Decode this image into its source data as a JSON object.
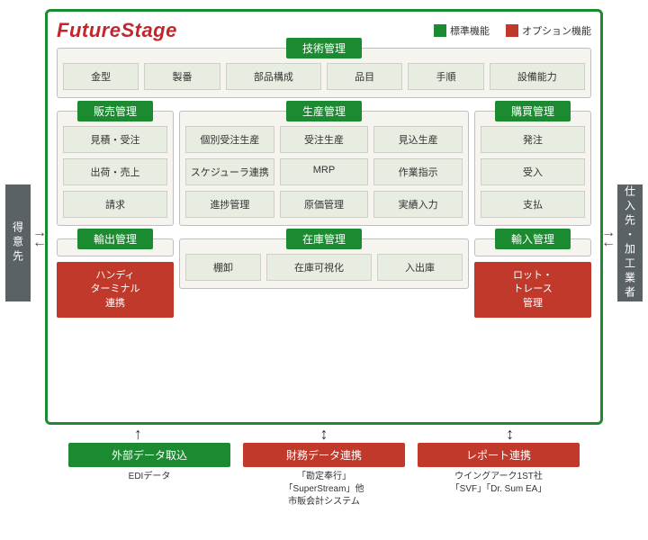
{
  "colors": {
    "green": "#1b8a31",
    "red": "#c1392b",
    "tile_bg": "#e7ede0",
    "section_bg": "#f6f4ef",
    "sidebar": "#5b6266"
  },
  "brand": "FutureStage",
  "legend": {
    "std_label": "標準機能",
    "opt_label": "オプション機能"
  },
  "sidebars": {
    "left": "得意先",
    "right": "仕入先・加工業者"
  },
  "tech": {
    "header": "技術管理",
    "items": [
      "金型",
      "製番",
      "部品構成",
      "品目",
      "手順",
      "設備能力"
    ]
  },
  "sales": {
    "header": "販売管理",
    "items": [
      "見積・受注",
      "出荷・売上",
      "請求"
    ]
  },
  "production": {
    "header": "生産管理",
    "items": [
      "個別受注生産",
      "受注生産",
      "見込生産",
      "スケジューラ連携",
      "MRP",
      "作業指示",
      "進捗管理",
      "原価管理",
      "実績入力"
    ]
  },
  "purchase": {
    "header": "購買管理",
    "items": [
      "発注",
      "受入",
      "支払"
    ]
  },
  "export": {
    "header": "輸出管理",
    "option": "ハンディ\nターミナル\n連携"
  },
  "inventory": {
    "header": "在庫管理",
    "items": [
      "棚卸",
      "在庫可視化",
      "入出庫"
    ]
  },
  "import": {
    "header": "輸入管理",
    "option": "ロット・\nトレース\n管理"
  },
  "external": [
    {
      "header": "外部データ取込",
      "header_color": "#1b8a31",
      "sub": "EDIデータ"
    },
    {
      "header": "財務データ連携",
      "header_color": "#c1392b",
      "sub": "「勘定奉行」\n「SuperStream」他\n市販会計システム"
    },
    {
      "header": "レポート連携",
      "header_color": "#c1392b",
      "sub": "ウイングアーク1ST社\n「SVF」「Dr. Sum EA」"
    }
  ]
}
